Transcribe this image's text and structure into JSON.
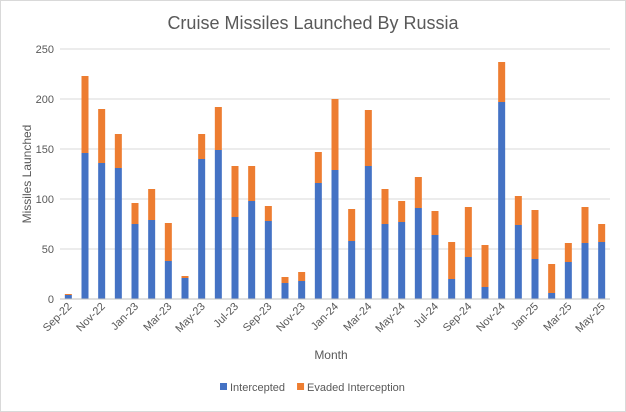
{
  "chart_data": {
    "type": "bar",
    "stacked": true,
    "title": "Cruise Missiles Launched By Russia",
    "xlabel": "Month",
    "ylabel": "Missiles Launched",
    "ylim": [
      0,
      250
    ],
    "yticks": [
      0,
      50,
      100,
      150,
      200,
      250
    ],
    "grid": true,
    "legend_position": "bottom",
    "categories": [
      "Sep-22",
      "Oct-22",
      "Nov-22",
      "Dec-22",
      "Jan-23",
      "Feb-23",
      "Mar-23",
      "Apr-23",
      "May-23",
      "Jun-23",
      "Jul-23",
      "Aug-23",
      "Sep-23",
      "Oct-23",
      "Nov-23",
      "Dec-23",
      "Jan-24",
      "Feb-24",
      "Mar-24",
      "Apr-24",
      "May-24",
      "Jun-24",
      "Jul-24",
      "Aug-24",
      "Sep-24",
      "Oct-24",
      "Nov-24",
      "Dec-24",
      "Jan-25",
      "Feb-25",
      "Mar-25",
      "Apr-25",
      "May-25"
    ],
    "x_tick_labels": [
      "Sep-22",
      "Nov-22",
      "Jan-23",
      "Mar-23",
      "May-23",
      "Jul-23",
      "Sep-23",
      "Nov-23",
      "Jan-24",
      "Mar-24",
      "May-24",
      "Jul-24",
      "Sep-24",
      "Nov-24",
      "Jan-25",
      "Mar-25",
      "May-25"
    ],
    "series": [
      {
        "name": "Intercepted",
        "color": "#4472c4",
        "values": [
          4,
          146,
          136,
          131,
          75,
          79,
          38,
          21,
          140,
          149,
          82,
          98,
          78,
          16,
          18,
          116,
          129,
          58,
          133,
          75,
          77,
          91,
          64,
          20,
          42,
          12,
          197,
          74,
          40,
          6,
          37,
          56,
          57
        ]
      },
      {
        "name": "Evaded Interception",
        "color": "#ed7d31",
        "values": [
          1,
          77,
          54,
          34,
          21,
          31,
          38,
          2,
          25,
          43,
          51,
          35,
          15,
          6,
          9,
          31,
          71,
          32,
          56,
          35,
          21,
          31,
          24,
          37,
          50,
          42,
          40,
          29,
          49,
          29,
          19,
          36,
          18
        ]
      }
    ]
  }
}
